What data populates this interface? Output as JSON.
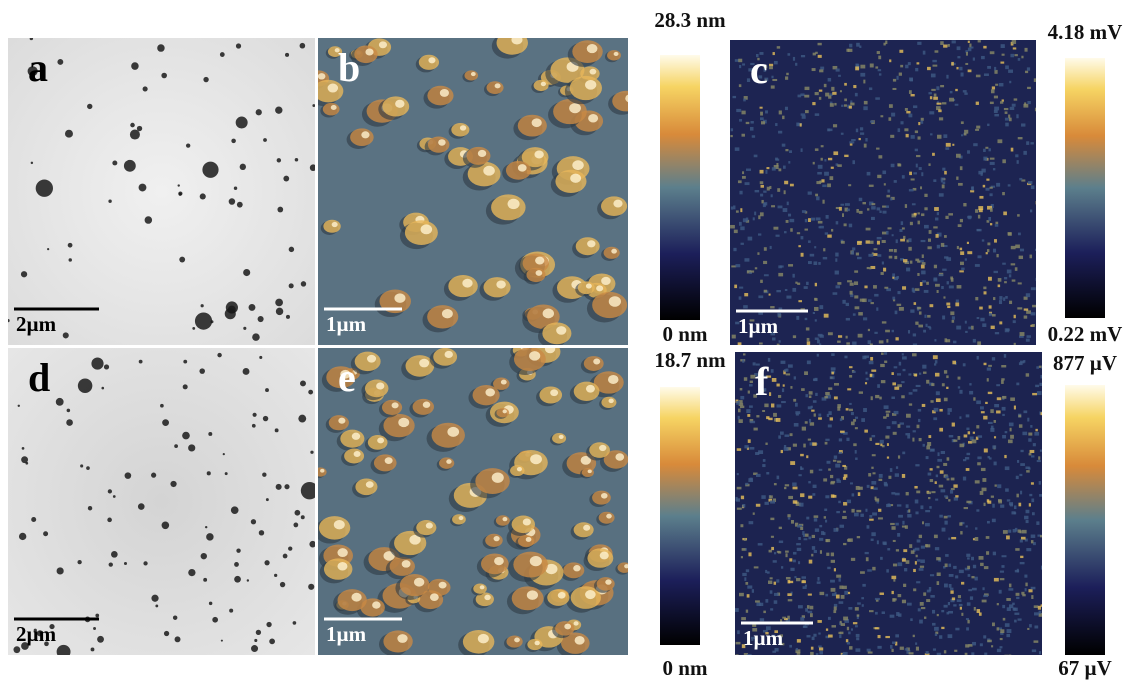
{
  "panels": [
    {
      "label": "a",
      "scale_bar": "2µm"
    },
    {
      "label": "b",
      "scale_bar": "1µm"
    },
    {
      "label": "c",
      "scale_bar": "1µm"
    },
    {
      "label": "d",
      "scale_bar": "2µm"
    },
    {
      "label": "e",
      "scale_bar": "1µm"
    },
    {
      "label": "f",
      "scale_bar": "1µm"
    }
  ],
  "colorbars": [
    {
      "max": "28.3 nm",
      "min": "0 nm"
    },
    {
      "max": "4.18 mV",
      "min": "0.22 mV"
    },
    {
      "max": "18.7 nm",
      "min": "0 nm"
    },
    {
      "max": "877 µV",
      "min": "67 µV"
    }
  ]
}
